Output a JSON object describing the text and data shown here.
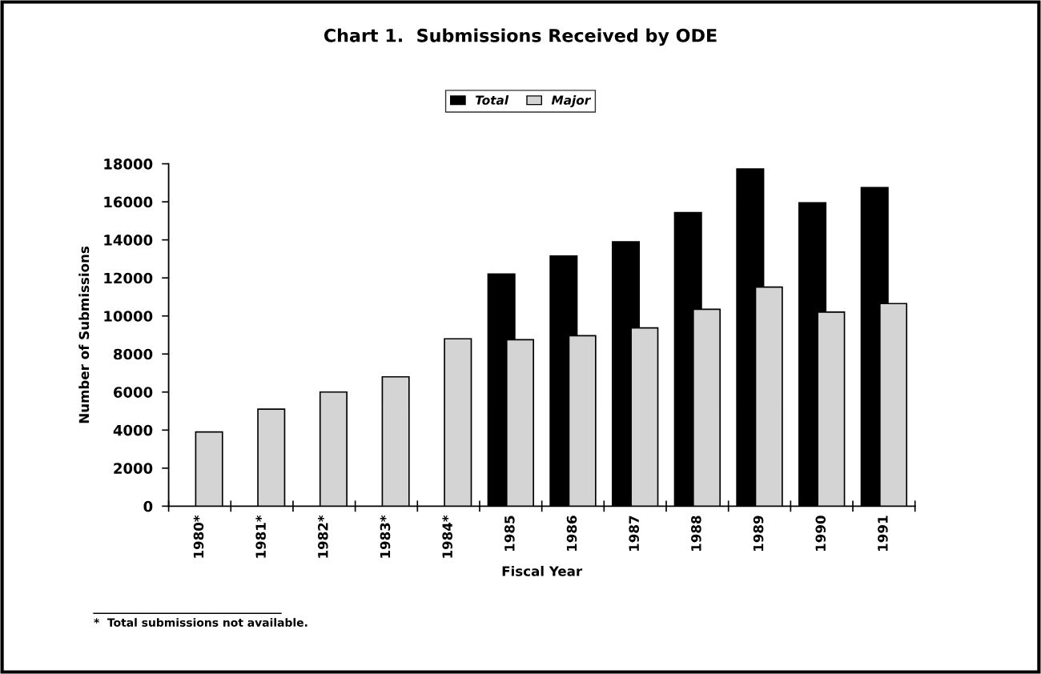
{
  "chart_data": {
    "type": "bar",
    "title": "Chart 1.  Submissions Received by ODE",
    "categories": [
      "1980*",
      "1981*",
      "1982*",
      "1983*",
      "1984*",
      "1985",
      "1986",
      "1987",
      "1988",
      "1989",
      "1990",
      "1991"
    ],
    "series": [
      {
        "name": "Total",
        "color": "#000000",
        "values": [
          null,
          null,
          null,
          null,
          null,
          12200,
          13150,
          13900,
          15430,
          17730,
          15950,
          16750
        ]
      },
      {
        "name": "Major",
        "color": "#d4d4d4",
        "values": [
          3900,
          5100,
          6000,
          6800,
          8800,
          8750,
          8960,
          9370,
          10350,
          11520,
          10200,
          10650
        ]
      }
    ],
    "xlabel": "Fiscal Year",
    "ylabel": "Number of Submissions",
    "ylim": [
      0,
      18000
    ],
    "yticks": [
      0,
      2000,
      4000,
      6000,
      8000,
      10000,
      12000,
      14000,
      16000,
      18000
    ],
    "grid": false,
    "legend": "top",
    "annotations": [
      "*  Total submissions not available."
    ]
  }
}
